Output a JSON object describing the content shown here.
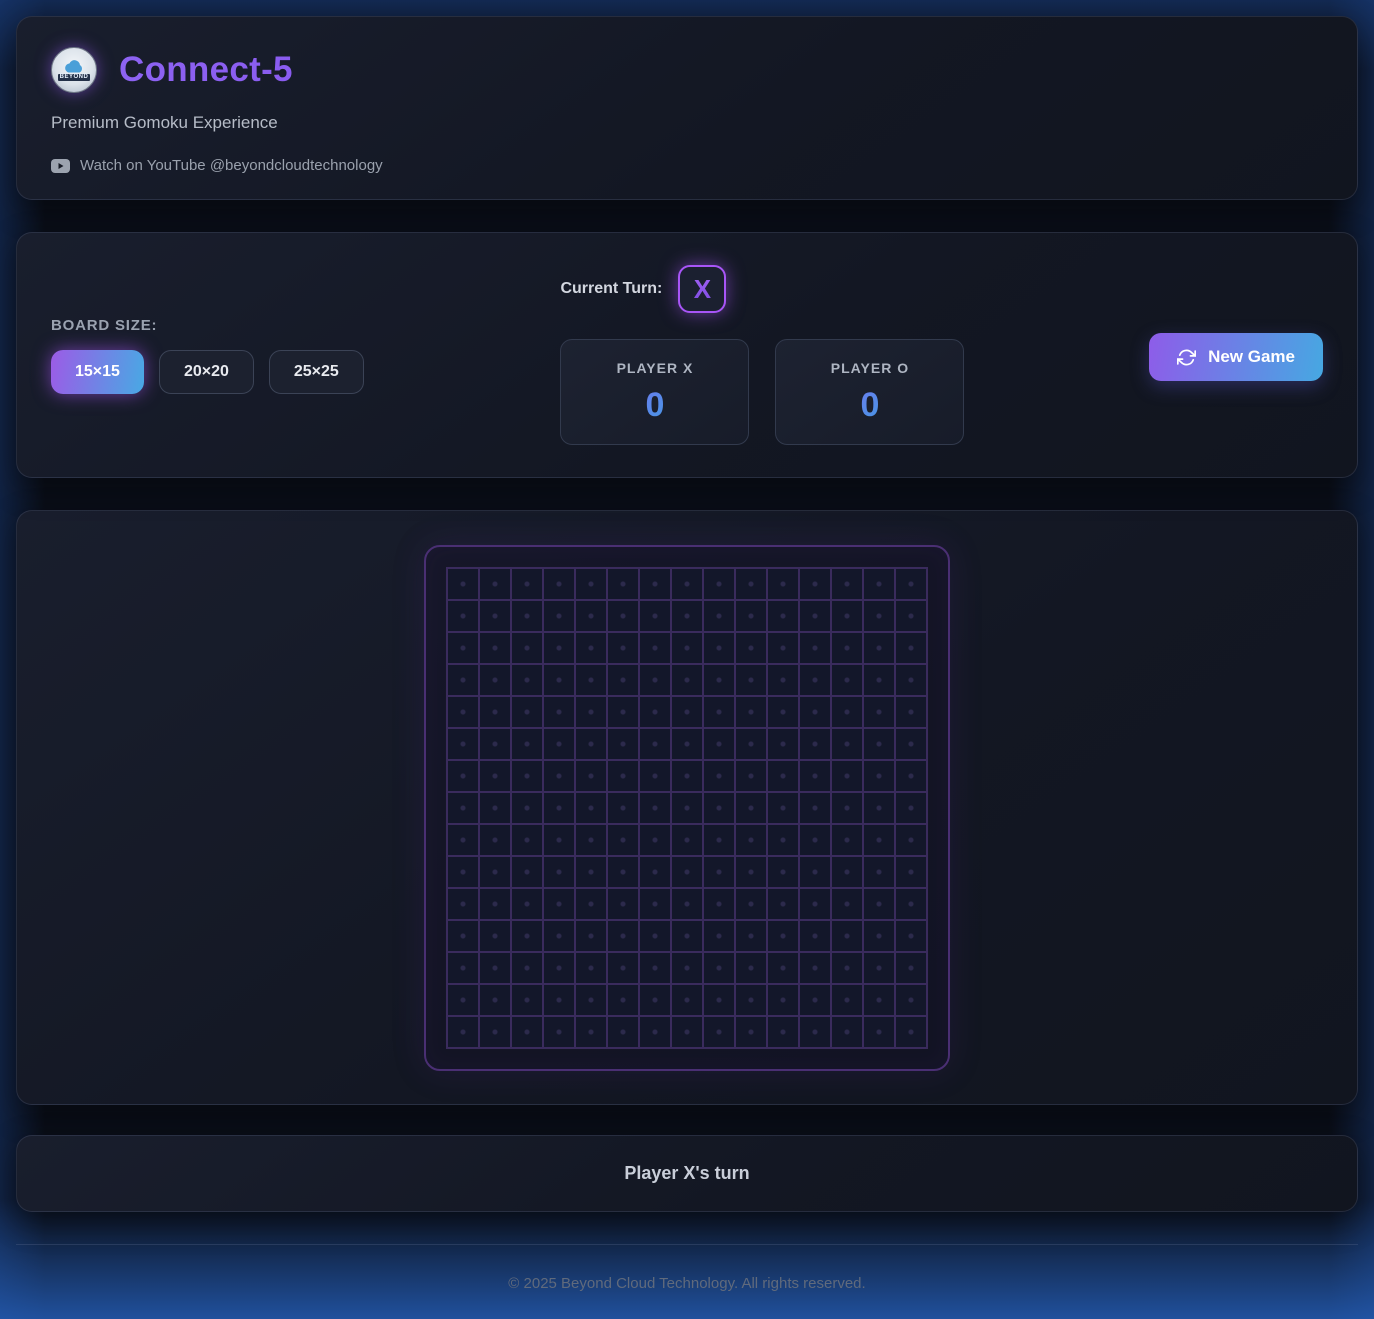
{
  "header": {
    "title": "Connect-5",
    "subtitle": "Premium Gomoku Experience",
    "logo_text": "BEYOND",
    "youtube_text": "Watch on YouTube @beyondcloudtechnology"
  },
  "controls": {
    "board_size_label": "BOARD SIZE:",
    "board_sizes": [
      {
        "label": "15×15",
        "selected": true
      },
      {
        "label": "20×20",
        "selected": false
      },
      {
        "label": "25×25",
        "selected": false
      }
    ],
    "current_turn_label": "Current Turn:",
    "current_turn_value": "X",
    "players": [
      {
        "name": "PLAYER X",
        "score": "0"
      },
      {
        "name": "PLAYER O",
        "score": "0"
      }
    ],
    "new_game_label": "New Game"
  },
  "board": {
    "rows": 15,
    "cols": 15
  },
  "status": {
    "message": "Player X's turn"
  },
  "footer": {
    "copyright": "© 2025 Beyond Cloud Technology. All rights reserved."
  },
  "colors": {
    "accent_purple": "#a855f7",
    "accent_blue": "#48a9e4",
    "score_blue": "#5b8bf0",
    "grid_line": "#3a2b5d",
    "title_purple": "#8b5cf6"
  }
}
